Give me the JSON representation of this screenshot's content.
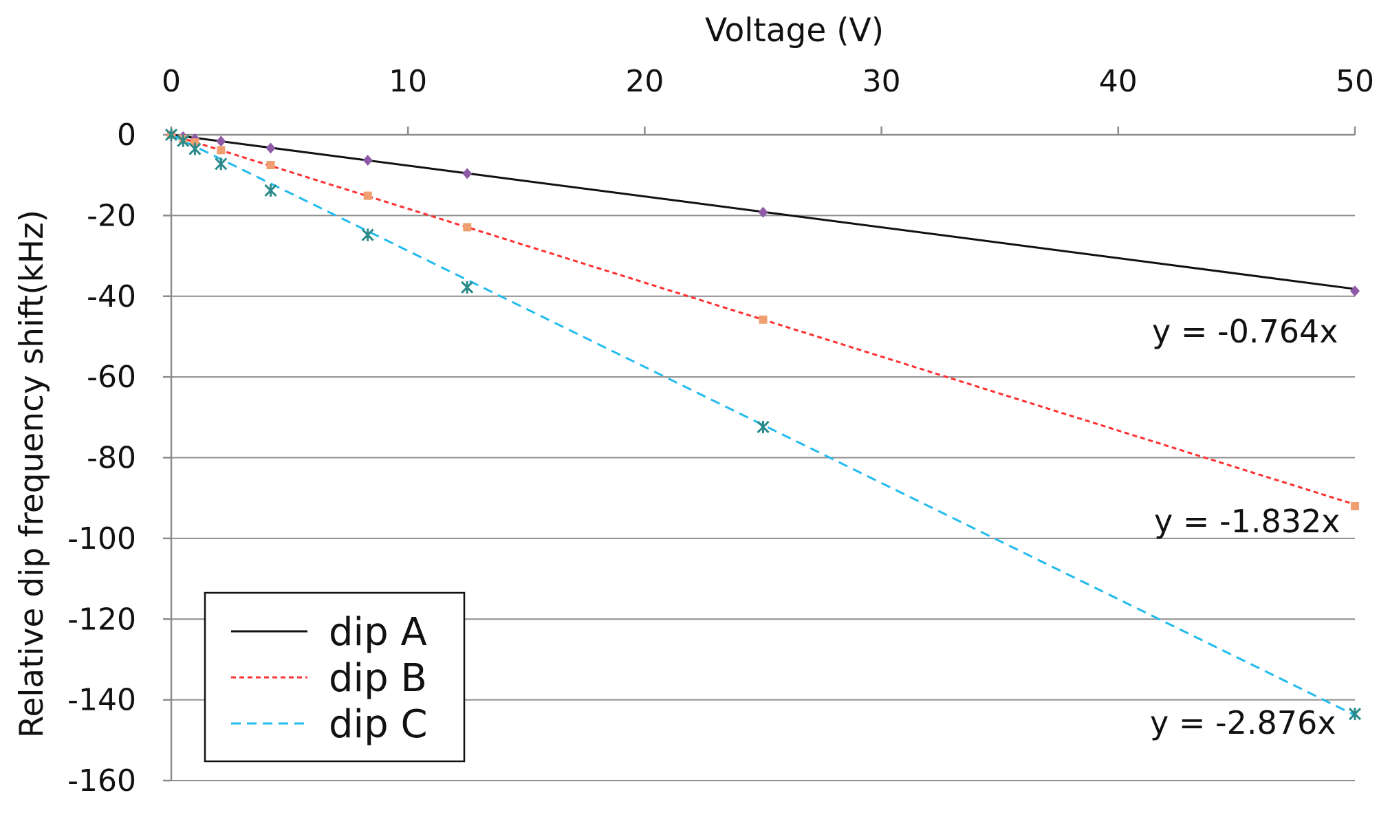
{
  "chart_data": {
    "type": "scatter",
    "title": "",
    "xlabel": "Voltage (V)",
    "ylabel": "Relative dip frequency shift(kHz)",
    "xlim": [
      0,
      50
    ],
    "ylim": [
      -160,
      0
    ],
    "xticks": [
      0,
      10,
      20,
      30,
      40,
      50
    ],
    "yticks": [
      0,
      -20,
      -40,
      -60,
      -80,
      -100,
      -120,
      -140,
      -160
    ],
    "x_axis_position": "top",
    "grid": "horizontal",
    "legend": {
      "position": "bottom-left",
      "entries": [
        "dip A",
        "dip B",
        "dip C"
      ]
    },
    "series": [
      {
        "name": "dip A",
        "color": "#111111",
        "dash": "solid",
        "fit_slope": -0.764,
        "equation": "y = -0.764x",
        "x": [
          0,
          0.5,
          1,
          2.1,
          4.2,
          8.3,
          12.5,
          25,
          50
        ],
        "y": [
          0,
          -0.5,
          -1,
          -1.6,
          -3.3,
          -6.3,
          -9.6,
          -19.2,
          -38.7
        ],
        "marker_color": "#8e5aa8"
      },
      {
        "name": "dip B",
        "color": "#ff3030",
        "dash": "dotted",
        "fit_slope": -1.832,
        "equation": "y = -1.832x",
        "x": [
          0,
          0.5,
          1,
          2.1,
          4.2,
          8.3,
          12.5,
          25,
          50
        ],
        "y": [
          0,
          -1,
          -1.9,
          -3.8,
          -7.5,
          -15.1,
          -22.9,
          -45.8,
          -92
        ],
        "marker_color": "#f0a070"
      },
      {
        "name": "dip C",
        "color": "#22bbee",
        "dash": "dashed",
        "fit_slope": -2.876,
        "equation": "y = -2.876x",
        "x": [
          0,
          0.5,
          1,
          2.1,
          4.2,
          8.3,
          12.5,
          25,
          50
        ],
        "y": [
          0,
          -1.5,
          -3.5,
          -7.2,
          -13.8,
          -24.8,
          -37.8,
          -72.4,
          -143.5
        ],
        "marker_color": "#2a8a8a"
      }
    ],
    "annotations": [
      {
        "text": "y = -0.764x",
        "series": "dip A"
      },
      {
        "text": "y = -1.832x",
        "series": "dip B"
      },
      {
        "text": "y = -2.876x",
        "series": "dip C"
      }
    ]
  }
}
